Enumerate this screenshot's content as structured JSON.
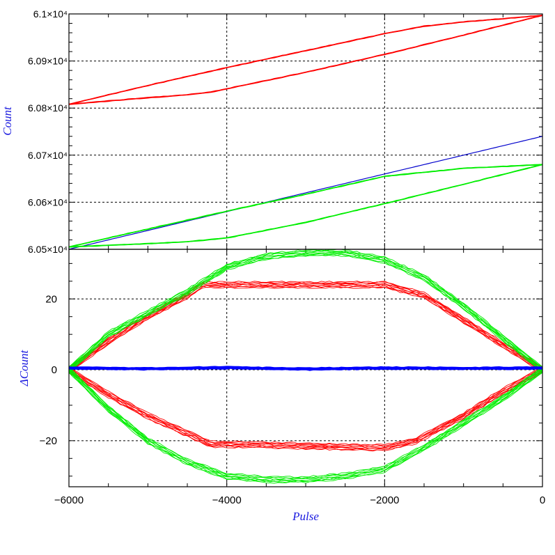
{
  "chart_data": [
    {
      "type": "line",
      "panel": "top",
      "xlabel": "",
      "ylabel": "Count",
      "xlim": [
        -6000,
        0
      ],
      "ylim": [
        60500,
        61000
      ],
      "x_ticks": [
        -4000,
        -2000
      ],
      "y_tick_labels": [
        "6.05×10⁴",
        "6.06×10⁴",
        "6.07×10⁴",
        "6.08×10⁴",
        "6.09×10⁴",
        "6.1×10⁴"
      ],
      "y_tick_values": [
        60500,
        60600,
        60700,
        60800,
        60900,
        61000
      ],
      "grid": true,
      "series": [
        {
          "color": "#ff0000",
          "x": [
            -6000,
            -5000,
            -4000,
            -3000,
            -2000,
            -1500,
            -1000,
            0
          ],
          "y": [
            60808,
            60848,
            60886,
            60922,
            60958,
            60974,
            60983,
            60997
          ]
        },
        {
          "color": "#ff0000",
          "x": [
            -6000,
            -5000,
            -4500,
            -4200,
            -4000,
            -3000,
            -2000,
            -1000,
            0
          ],
          "y": [
            60808,
            60822,
            60828,
            60834,
            60841,
            60876,
            60914,
            60955,
            60997
          ]
        },
        {
          "color": "#0000cc",
          "x": [
            -6000,
            -4000,
            -2000,
            0
          ],
          "y": [
            60500,
            60580,
            60660,
            60740
          ]
        },
        {
          "color": "#00ee00",
          "x": [
            -6000,
            -5000,
            -4000,
            -3000,
            -2000,
            -1000,
            0
          ],
          "y": [
            60505,
            60543,
            60581,
            60617,
            60655,
            60672,
            60680
          ]
        },
        {
          "color": "#00ee00",
          "x": [
            -6000,
            -5000,
            -4500,
            -4000,
            -3000,
            -2000,
            -1000,
            0
          ],
          "y": [
            60505,
            60512,
            60516,
            60524,
            60557,
            60597,
            60638,
            60680
          ]
        }
      ]
    },
    {
      "type": "line",
      "panel": "bottom",
      "xlabel": "Pulse",
      "ylabel": "ΔCount",
      "xlim": [
        -6000,
        0
      ],
      "ylim": [
        -33,
        34
      ],
      "x_ticks": [
        -6000,
        -4000,
        -2000,
        0
      ],
      "x_tick_labels": [
        "−6000",
        "−4000",
        "−2000",
        "0"
      ],
      "y_ticks": [
        -20,
        0,
        20
      ],
      "y_tick_labels": [
        "−20",
        "0",
        "20"
      ],
      "grid": true,
      "series": [
        {
          "color": "#ff0000",
          "x": [
            -6000,
            -5500,
            -5000,
            -4500,
            -4300,
            -4000,
            -3000,
            -2000,
            -1500,
            -1000,
            -500,
            0
          ],
          "y": [
            0,
            8,
            15,
            21,
            24,
            24,
            24,
            24,
            21,
            14,
            7,
            0
          ]
        },
        {
          "color": "#ff0000",
          "x": [
            -6000,
            -5500,
            -5000,
            -4500,
            -4200,
            -4000,
            -3000,
            -2000,
            -1600,
            -1000,
            -500,
            0
          ],
          "y": [
            0,
            -7,
            -13,
            -18,
            -21,
            -21,
            -21.5,
            -22,
            -20,
            -13,
            -6,
            0
          ]
        },
        {
          "color": "#00ee00",
          "x": [
            -6000,
            -5500,
            -5000,
            -4500,
            -4000,
            -3500,
            -3000,
            -2500,
            -2000,
            -1500,
            -1000,
            -500,
            0
          ],
          "y": [
            0,
            10,
            16,
            22,
            29,
            32,
            33,
            33,
            31,
            26,
            18,
            9,
            0
          ]
        },
        {
          "color": "#00ee00",
          "x": [
            -6000,
            -5500,
            -5000,
            -4500,
            -4000,
            -3500,
            -3000,
            -2500,
            -2000,
            -1500,
            -1000,
            -500,
            0
          ],
          "y": [
            0,
            -11,
            -20,
            -26,
            -30,
            -31,
            -31,
            -30,
            -28,
            -22,
            -15,
            -8,
            0
          ]
        },
        {
          "color": "#0000ff",
          "x": [
            -6000,
            -5000,
            -4000,
            -3000,
            -2000,
            -1000,
            0
          ],
          "y": [
            0.5,
            0.3,
            0.6,
            0.2,
            0.5,
            0.4,
            0.5
          ]
        }
      ]
    }
  ]
}
